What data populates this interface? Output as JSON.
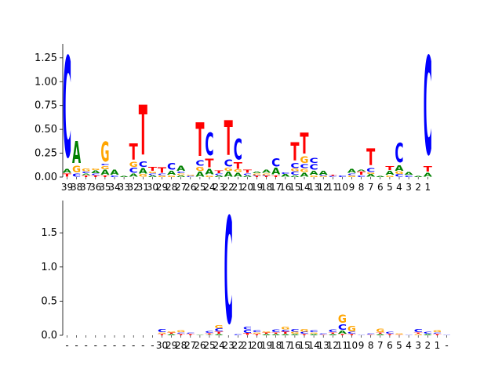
{
  "colors": {
    "A": "#008000",
    "C": "#0000ff",
    "G": "#ffa500",
    "T": "#ff0000",
    "axis": "#000000"
  },
  "chart_data": [
    {
      "type": "sequence-logo",
      "ylim": [
        0,
        1.38
      ],
      "yticks": [
        "0.00",
        "0.25",
        "0.50",
        "0.75",
        "1.00",
        "1.25"
      ],
      "ytick_values": [
        0,
        0.25,
        0.5,
        0.75,
        1.0,
        1.25
      ],
      "x": [
        "39",
        "38",
        "37",
        "36",
        "35",
        "34",
        "33",
        "32",
        "31",
        "30",
        "29",
        "28",
        "27",
        "26",
        "25",
        "24",
        "23",
        "22",
        "21",
        "20",
        "19",
        "18",
        "17",
        "16",
        "15",
        "14",
        "13",
        "12",
        "11",
        "10",
        "9",
        "8",
        "7",
        "6",
        "5",
        "4",
        "3",
        "2",
        "1"
      ],
      "stacks": [
        [
          [
            "T",
            0.04
          ],
          [
            "A",
            0.05
          ],
          [
            "C",
            1.25
          ]
        ],
        [
          [
            "C",
            0.04
          ],
          [
            "G",
            0.08
          ],
          [
            "A",
            0.27
          ]
        ],
        [
          [
            "T",
            0.02
          ],
          [
            "A",
            0.02
          ],
          [
            "C",
            0.02
          ],
          [
            "G",
            0.03
          ]
        ],
        [
          [
            "T",
            0.02
          ],
          [
            "C",
            0.02
          ],
          [
            "A",
            0.03
          ],
          [
            "G",
            0.02
          ]
        ],
        [
          [
            "T",
            0.02
          ],
          [
            "A",
            0.06
          ],
          [
            "G",
            0.04
          ],
          [
            "C",
            0.02
          ],
          [
            "G",
            0.25
          ]
        ],
        [
          [
            "C",
            0.02
          ],
          [
            "A",
            0.06
          ]
        ],
        [
          [
            "A",
            0.01
          ]
        ],
        [
          [
            "A",
            0.04
          ],
          [
            "C",
            0.06
          ],
          [
            "G",
            0.06
          ],
          [
            "T",
            0.2
          ]
        ],
        [
          [
            "G",
            0.03
          ],
          [
            "A",
            0.07
          ],
          [
            "C",
            0.07
          ],
          [
            "T",
            0.62
          ]
        ],
        [
          [
            "A",
            0.02
          ],
          [
            "C",
            0.02
          ],
          [
            "G",
            0.02
          ],
          [
            "T",
            0.05
          ]
        ],
        [
          [
            "G",
            0.02
          ],
          [
            "C",
            0.02
          ],
          [
            "T",
            0.07
          ]
        ],
        [
          [
            "G",
            0.02
          ],
          [
            "A",
            0.05
          ],
          [
            "C",
            0.08
          ]
        ],
        [
          [
            "A",
            0.02
          ],
          [
            "G",
            0.02
          ],
          [
            "C",
            0.02
          ],
          [
            "A",
            0.06
          ]
        ],
        [
          [
            "C",
            0.01
          ],
          [
            "G",
            0.01
          ]
        ],
        [
          [
            "A",
            0.06
          ],
          [
            "G",
            0.05
          ],
          [
            "C",
            0.07
          ],
          [
            "T",
            0.42
          ]
        ],
        [
          [
            "G",
            0.02
          ],
          [
            "A",
            0.07
          ],
          [
            "T",
            0.11
          ],
          [
            "C",
            0.28
          ]
        ],
        [
          [
            "A",
            0.02
          ],
          [
            "C",
            0.02
          ],
          [
            "T",
            0.03
          ]
        ],
        [
          [
            "A",
            0.06
          ],
          [
            "G",
            0.04
          ],
          [
            "C",
            0.09
          ],
          [
            "T",
            0.43
          ]
        ],
        [
          [
            "A",
            0.05
          ],
          [
            "G",
            0.03
          ],
          [
            "T",
            0.08
          ],
          [
            "C",
            0.26
          ]
        ],
        [
          [
            "A",
            0.02
          ],
          [
            "C",
            0.02
          ],
          [
            "T",
            0.04
          ]
        ],
        [
          [
            "T",
            0.01
          ],
          [
            "C",
            0.01
          ],
          [
            "G",
            0.02
          ],
          [
            "A",
            0.02
          ]
        ],
        [
          [
            "T",
            0.01
          ],
          [
            "C",
            0.01
          ],
          [
            "G",
            0.02
          ],
          [
            "A",
            0.04
          ]
        ],
        [
          [
            "T",
            0.02
          ],
          [
            "A",
            0.08
          ],
          [
            "C",
            0.1
          ]
        ],
        [
          [
            "A",
            0.03
          ],
          [
            "C",
            0.02
          ]
        ],
        [
          [
            "A",
            0.02
          ],
          [
            "C",
            0.04
          ],
          [
            "G",
            0.03
          ],
          [
            "C",
            0.06
          ],
          [
            "T",
            0.23
          ]
        ],
        [
          [
            "A",
            0.05
          ],
          [
            "G",
            0.04
          ],
          [
            "C",
            0.05
          ],
          [
            "G",
            0.08
          ],
          [
            "T",
            0.26
          ]
        ],
        [
          [
            "G",
            0.02
          ],
          [
            "A",
            0.05
          ],
          [
            "C",
            0.07
          ],
          [
            "C",
            0.06
          ]
        ],
        [
          [
            "G",
            0.01
          ],
          [
            "C",
            0.01
          ],
          [
            "A",
            0.05
          ]
        ],
        [
          [
            "C",
            0.01
          ],
          [
            "T",
            0.01
          ]
        ],
        [
          [
            "C",
            0.02
          ]
        ],
        [
          [
            "G",
            0.02
          ],
          [
            "C",
            0.02
          ],
          [
            "A",
            0.05
          ]
        ],
        [
          [
            "C",
            0.02
          ],
          [
            "T",
            0.04
          ],
          [
            "A",
            0.02
          ]
        ],
        [
          [
            "A",
            0.03
          ],
          [
            "G",
            0.02
          ],
          [
            "C",
            0.05
          ],
          [
            "T",
            0.21
          ]
        ],
        [
          [
            "A",
            0.01
          ]
        ],
        [
          [
            "G",
            0.02
          ],
          [
            "A",
            0.05
          ],
          [
            "T",
            0.05
          ]
        ],
        [
          [
            "C",
            0.03
          ],
          [
            "G",
            0.03
          ],
          [
            "A",
            0.07
          ],
          [
            "C",
            0.24
          ]
        ],
        [
          [
            "C",
            0.02
          ],
          [
            "A",
            0.03
          ]
        ],
        [
          [
            "A",
            0.01
          ]
        ],
        [
          [
            "A",
            0.05
          ],
          [
            "T",
            0.07
          ],
          [
            "C",
            1.22
          ]
        ]
      ]
    },
    {
      "type": "sequence-logo",
      "ylim": [
        0,
        1.95
      ],
      "yticks": [
        "0.0",
        "0.5",
        "1.0",
        "1.5"
      ],
      "ytick_values": [
        0,
        0.5,
        1.0,
        1.5
      ],
      "x": [
        "-",
        "-",
        "-",
        "-",
        "-",
        "-",
        "-",
        "-",
        "-",
        "-",
        "30",
        "29",
        "28",
        "27",
        "26",
        "25",
        "24",
        "23",
        "22",
        "21",
        "20",
        "19",
        "18",
        "17",
        "16",
        "15",
        "14",
        "13",
        "12",
        "11",
        "10",
        "9",
        "8",
        "7",
        "6",
        "5",
        "4",
        "3",
        "2",
        "1",
        "-"
      ],
      "stacks": [
        [],
        [],
        [],
        [],
        [],
        [],
        [],
        [],
        [],
        [],
        [
          [
            "T",
            0.02
          ],
          [
            "G",
            0.02
          ],
          [
            "C",
            0.05
          ]
        ],
        [
          [
            "A",
            0.02
          ],
          [
            "T",
            0.02
          ],
          [
            "G",
            0.02
          ]
        ],
        [
          [
            "T",
            0.02
          ],
          [
            "C",
            0.02
          ],
          [
            "G",
            0.03
          ]
        ],
        [
          [
            "T",
            0.02
          ],
          [
            "C",
            0.02
          ]
        ],
        [
          [
            "A",
            0.01
          ]
        ],
        [
          [
            "A",
            0.01
          ],
          [
            "T",
            0.02
          ],
          [
            "C",
            0.03
          ]
        ],
        [
          [
            "A",
            0.02
          ],
          [
            "T",
            0.03
          ],
          [
            "C",
            0.05
          ],
          [
            "G",
            0.05
          ]
        ],
        [
          [
            "C",
            1.85
          ]
        ],
        [
          [
            "C",
            0.02
          ]
        ],
        [
          [
            "T",
            0.03
          ],
          [
            "C",
            0.05
          ],
          [
            "C",
            0.04
          ]
        ],
        [
          [
            "T",
            0.02
          ],
          [
            "G",
            0.02
          ],
          [
            "C",
            0.03
          ]
        ],
        [
          [
            "A",
            0.02
          ],
          [
            "T",
            0.02
          ],
          [
            "G",
            0.02
          ]
        ],
        [
          [
            "A",
            0.02
          ],
          [
            "T",
            0.02
          ],
          [
            "C",
            0.04
          ]
        ],
        [
          [
            "A",
            0.02
          ],
          [
            "T",
            0.03
          ],
          [
            "C",
            0.03
          ],
          [
            "G",
            0.04
          ]
        ],
        [
          [
            "A",
            0.02
          ],
          [
            "G",
            0.03
          ],
          [
            "C",
            0.04
          ]
        ],
        [
          [
            "T",
            0.02
          ],
          [
            "C",
            0.03
          ],
          [
            "G",
            0.04
          ]
        ],
        [
          [
            "A",
            0.02
          ],
          [
            "G",
            0.02
          ],
          [
            "C",
            0.03
          ]
        ],
        [
          [
            "T",
            0.01
          ],
          [
            "C",
            0.02
          ]
        ],
        [
          [
            "A",
            0.02
          ],
          [
            "T",
            0.02
          ],
          [
            "C",
            0.04
          ]
        ],
        [
          [
            "T",
            0.02
          ],
          [
            "A",
            0.05
          ],
          [
            "C",
            0.1
          ],
          [
            "G",
            0.14
          ]
        ],
        [
          [
            "T",
            0.02
          ],
          [
            "C",
            0.03
          ],
          [
            "G",
            0.1
          ]
        ],
        [
          [
            "C",
            0.01
          ]
        ],
        [
          [
            "T",
            0.01
          ],
          [
            "C",
            0.02
          ]
        ],
        [
          [
            "A",
            0.02
          ],
          [
            "T",
            0.02
          ],
          [
            "G",
            0.06
          ]
        ],
        [
          [
            "T",
            0.02
          ],
          [
            "C",
            0.03
          ]
        ],
        [
          [
            "T",
            0.01
          ],
          [
            "G",
            0.02
          ]
        ],
        [
          [
            "C",
            0.01
          ]
        ],
        [
          [
            "G",
            0.02
          ],
          [
            "T",
            0.02
          ],
          [
            "C",
            0.05
          ]
        ],
        [
          [
            "A",
            0.02
          ],
          [
            "C",
            0.03
          ]
        ],
        [
          [
            "T",
            0.02
          ],
          [
            "C",
            0.02
          ],
          [
            "G",
            0.03
          ]
        ],
        [
          [
            "C",
            0.01
          ]
        ]
      ]
    }
  ]
}
